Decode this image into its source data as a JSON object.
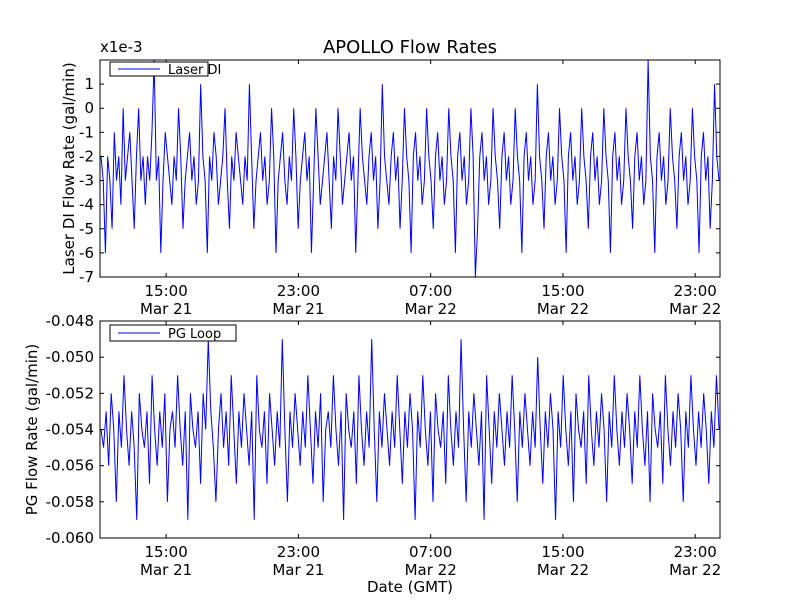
{
  "chart_data": [
    {
      "type": "line",
      "title": "APOLLO Flow Rates",
      "ylabel": "Laser DI Flow Rate (gal/min)",
      "xlabel": "",
      "offset_label": "x1e-3",
      "ylim": [
        -7,
        2
      ],
      "yticks": [
        -7,
        -6,
        -5,
        -4,
        -3,
        -2,
        -1,
        0,
        1
      ],
      "ytick_labels": [
        "-7",
        "-6",
        "-5",
        "-4",
        "-3",
        "-2",
        "-1",
        "0",
        "1"
      ],
      "xlim": [
        "2013-03-21T11:00",
        "2013-03-23T00:30"
      ],
      "xticks": [
        "2013-03-21T15:00",
        "2013-03-21T23:00",
        "2013-03-22T07:00",
        "2013-03-22T15:00",
        "2013-03-22T23:00"
      ],
      "xtick_labels": [
        [
          "15:00",
          "Mar 21"
        ],
        [
          "23:00",
          "Mar 21"
        ],
        [
          "07:00",
          "Mar 22"
        ],
        [
          "15:00",
          "Mar 22"
        ],
        [
          "23:00",
          "Mar 22"
        ]
      ],
      "grid": false,
      "legend_position": "top-left",
      "series": [
        {
          "name": "Laser DI",
          "color": "#0000ff",
          "typical_range": [
            -3,
            -2
          ],
          "min": -7,
          "max": 2,
          "values": [
            -2,
            -3,
            -6,
            -2,
            -3,
            -5,
            -1,
            -3,
            -2,
            -4,
            0,
            -3,
            -2,
            -1,
            -3,
            -5,
            -2,
            0,
            -3,
            -2,
            -4,
            -2,
            -3,
            -1,
            2,
            -3,
            -2,
            -6,
            -3,
            -1,
            -2,
            -3,
            -4,
            -2,
            -3,
            0,
            -2,
            -5,
            -3,
            -2,
            -1,
            -3,
            -2,
            -4,
            -3,
            1,
            -2,
            -3,
            -6,
            -2,
            -3,
            -1,
            -2,
            -4,
            -3,
            -2,
            0,
            -3,
            -5,
            -2,
            -3,
            -1,
            -2,
            -3,
            -4,
            -2,
            -3,
            1,
            -2,
            -5,
            -3,
            -2,
            -1,
            -3,
            -2,
            -4,
            -3,
            0,
            -2,
            -6,
            -3,
            -2,
            -1,
            -3,
            -4,
            -2,
            -3,
            0,
            -2,
            -5,
            -3,
            -2,
            -1,
            -3,
            -2,
            -6,
            -3,
            0,
            -2,
            -4,
            -3,
            -2,
            -1,
            -3,
            -5,
            -2,
            -3,
            0,
            -2,
            -4,
            -3,
            -2,
            -1,
            -3,
            -2,
            -6,
            -3,
            0,
            -2,
            -3,
            -4,
            -2,
            -1,
            -3,
            -2,
            -5,
            -3,
            1,
            -2,
            -3,
            -4,
            -2,
            -1,
            -3,
            -2,
            -5,
            -3,
            0,
            -2,
            -3,
            -6,
            -2,
            -1,
            -3,
            -2,
            -4,
            -3,
            0,
            -2,
            -3,
            -5,
            -2,
            -1,
            -3,
            -2,
            -4,
            -3,
            0,
            -2,
            -3,
            -6,
            -2,
            -1,
            -3,
            -2,
            -4,
            -3,
            0,
            -2,
            -7,
            -5,
            -2,
            -1,
            -3,
            -2,
            -4,
            -3,
            0,
            -2,
            -3,
            -5,
            -2,
            -1,
            -3,
            -2,
            -4,
            -3,
            0,
            -2,
            -3,
            -6,
            -2,
            -1,
            -3,
            -2,
            -4,
            -3,
            1,
            -2,
            -3,
            -5,
            -2,
            -1,
            -3,
            -2,
            -4,
            -3,
            0,
            -2,
            -3,
            -6,
            -2,
            -1,
            -3,
            -2,
            -4,
            -3,
            0,
            -2,
            -3,
            -5,
            -2,
            -1,
            -3,
            -2,
            -4,
            -3,
            0,
            -2,
            -3,
            -6,
            -2,
            -1,
            -3,
            -2,
            -4,
            -3,
            0,
            -2,
            -3,
            -5,
            -2,
            -1,
            -3,
            -2,
            -4,
            -3,
            2,
            -2,
            -3,
            -6,
            -2,
            -1,
            -3,
            -2,
            -4,
            -3,
            0,
            -2,
            -3,
            -5,
            -2,
            -1,
            -3,
            -2,
            -4,
            -3,
            0,
            -2,
            -3,
            -6,
            -2,
            -1,
            -3,
            -2,
            -5,
            -3,
            1,
            -2,
            -3
          ]
        }
      ]
    },
    {
      "type": "line",
      "title": "",
      "ylabel": "PG Flow Rate (gal/min)",
      "xlabel": "Date (GMT)",
      "ylim": [
        -0.06,
        -0.048
      ],
      "yticks": [
        -0.06,
        -0.058,
        -0.056,
        -0.054,
        -0.052,
        -0.05,
        -0.048
      ],
      "ytick_labels": [
        "-0.060",
        "-0.058",
        "-0.056",
        "-0.054",
        "-0.052",
        "-0.050",
        "-0.048"
      ],
      "xlim": [
        "2013-03-21T11:00",
        "2013-03-23T00:30"
      ],
      "xticks": [
        "2013-03-21T15:00",
        "2013-03-21T23:00",
        "2013-03-22T07:00",
        "2013-03-22T15:00",
        "2013-03-22T23:00"
      ],
      "xtick_labels": [
        [
          "15:00",
          "Mar 21"
        ],
        [
          "23:00",
          "Mar 21"
        ],
        [
          "07:00",
          "Mar 22"
        ],
        [
          "15:00",
          "Mar 22"
        ],
        [
          "23:00",
          "Mar 22"
        ]
      ],
      "grid": false,
      "legend_position": "top-left",
      "series": [
        {
          "name": "PG Loop",
          "color": "#0000ff",
          "typical_range": [
            -0.055,
            -0.053
          ],
          "min": -0.059,
          "max": -0.049,
          "values": [
            -0.054,
            -0.055,
            -0.053,
            -0.056,
            -0.052,
            -0.054,
            -0.058,
            -0.053,
            -0.055,
            -0.051,
            -0.054,
            -0.056,
            -0.053,
            -0.055,
            -0.059,
            -0.052,
            -0.054,
            -0.055,
            -0.053,
            -0.057,
            -0.051,
            -0.054,
            -0.056,
            -0.053,
            -0.055,
            -0.052,
            -0.058,
            -0.054,
            -0.053,
            -0.055,
            -0.051,
            -0.054,
            -0.056,
            -0.053,
            -0.059,
            -0.052,
            -0.054,
            -0.055,
            -0.053,
            -0.057,
            -0.052,
            -0.054,
            -0.049,
            -0.053,
            -0.055,
            -0.058,
            -0.054,
            -0.052,
            -0.055,
            -0.053,
            -0.056,
            -0.051,
            -0.054,
            -0.057,
            -0.053,
            -0.055,
            -0.052,
            -0.054,
            -0.056,
            -0.053,
            -0.059,
            -0.051,
            -0.054,
            -0.055,
            -0.053,
            -0.057,
            -0.052,
            -0.054,
            -0.056,
            -0.053,
            -0.055,
            -0.049,
            -0.054,
            -0.058,
            -0.053,
            -0.055,
            -0.052,
            -0.054,
            -0.056,
            -0.053,
            -0.055,
            -0.051,
            -0.054,
            -0.057,
            -0.053,
            -0.055,
            -0.052,
            -0.058,
            -0.054,
            -0.053,
            -0.055,
            -0.051,
            -0.054,
            -0.056,
            -0.053,
            -0.059,
            -0.052,
            -0.054,
            -0.055,
            -0.053,
            -0.057,
            -0.051,
            -0.054,
            -0.056,
            -0.053,
            -0.055,
            -0.049,
            -0.054,
            -0.058,
            -0.053,
            -0.055,
            -0.052,
            -0.054,
            -0.056,
            -0.053,
            -0.055,
            -0.051,
            -0.054,
            -0.057,
            -0.053,
            -0.055,
            -0.052,
            -0.054,
            -0.059,
            -0.053,
            -0.055,
            -0.051,
            -0.054,
            -0.056,
            -0.053,
            -0.058,
            -0.052,
            -0.054,
            -0.055,
            -0.053,
            -0.057,
            -0.051,
            -0.054,
            -0.056,
            -0.053,
            -0.055,
            -0.049,
            -0.054,
            -0.058,
            -0.053,
            -0.055,
            -0.052,
            -0.054,
            -0.056,
            -0.053,
            -0.059,
            -0.051,
            -0.054,
            -0.057,
            -0.053,
            -0.055,
            -0.052,
            -0.054,
            -0.056,
            -0.053,
            -0.055,
            -0.051,
            -0.054,
            -0.058,
            -0.053,
            -0.055,
            -0.052,
            -0.054,
            -0.056,
            -0.053,
            -0.055,
            -0.05,
            -0.054,
            -0.057,
            -0.053,
            -0.055,
            -0.052,
            -0.054,
            -0.059,
            -0.053,
            -0.055,
            -0.051,
            -0.054,
            -0.056,
            -0.053,
            -0.058,
            -0.052,
            -0.054,
            -0.055,
            -0.053,
            -0.057,
            -0.051,
            -0.054,
            -0.056,
            -0.053,
            -0.055,
            -0.052,
            -0.054,
            -0.058,
            -0.053,
            -0.055,
            -0.051,
            -0.054,
            -0.056,
            -0.053,
            -0.055,
            -0.052,
            -0.054,
            -0.057,
            -0.053,
            -0.055,
            -0.051,
            -0.054,
            -0.056,
            -0.053,
            -0.058,
            -0.052,
            -0.054,
            -0.055,
            -0.053,
            -0.057,
            -0.051,
            -0.054,
            -0.056,
            -0.053,
            -0.055,
            -0.052,
            -0.054,
            -0.058,
            -0.053,
            -0.055,
            -0.051,
            -0.054,
            -0.056,
            -0.053,
            -0.055,
            -0.052,
            -0.054,
            -0.057,
            -0.053,
            -0.055,
            -0.051,
            -0.054
          ]
        }
      ]
    }
  ]
}
